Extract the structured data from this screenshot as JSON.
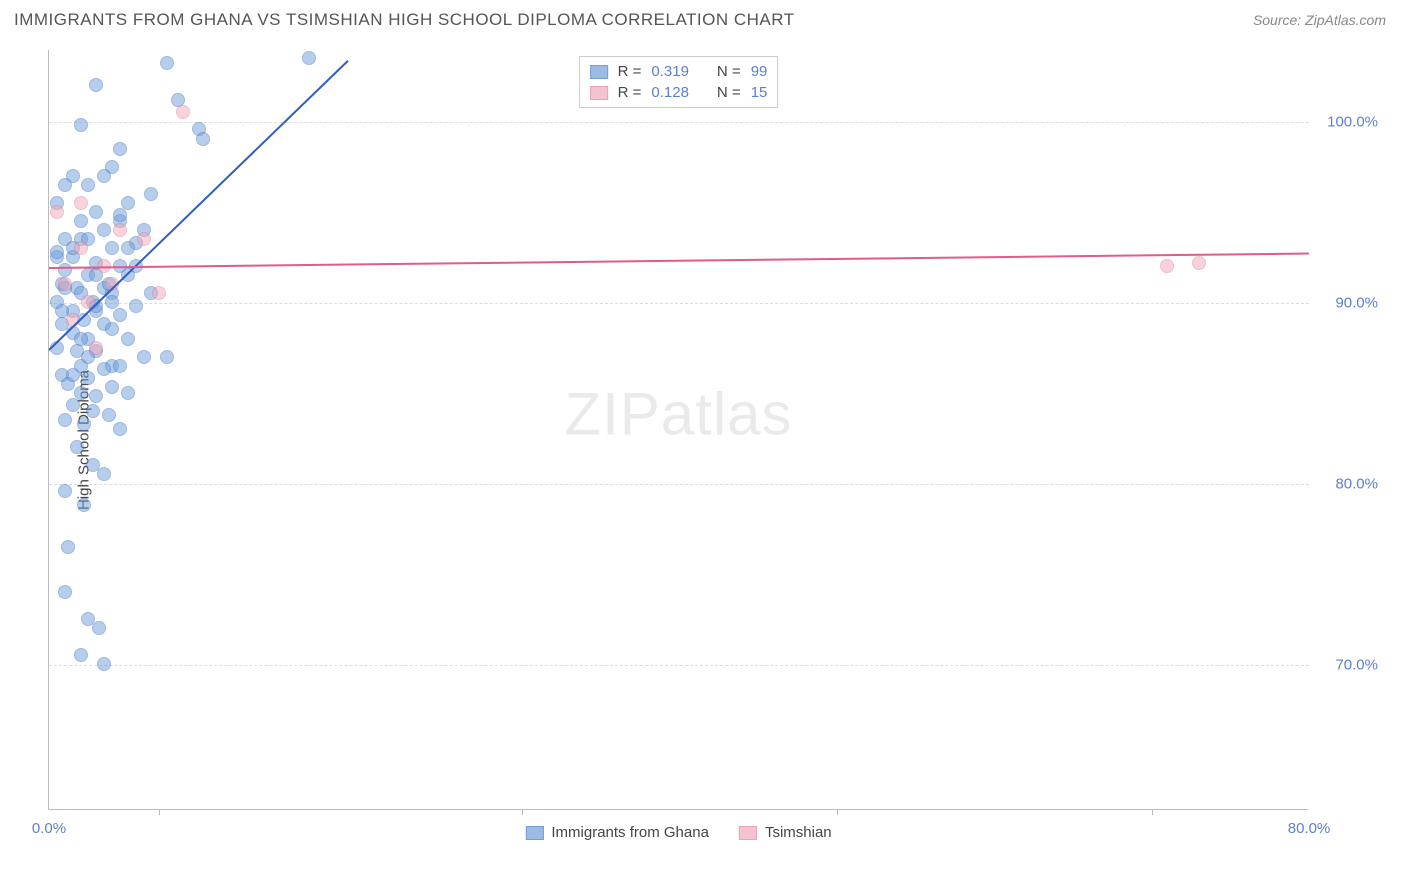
{
  "header": {
    "title": "IMMIGRANTS FROM GHANA VS TSIMSHIAN HIGH SCHOOL DIPLOMA CORRELATION CHART",
    "source_label": "Source:",
    "source_value": "ZipAtlas.com"
  },
  "chart": {
    "type": "scatter",
    "ylabel": "High School Diploma",
    "background_color": "#ffffff",
    "grid_color": "#dddddd",
    "axis_color": "#bbbbbb",
    "tick_label_color": "#5b7fd1",
    "ylabel_fontsize": 15,
    "tick_fontsize": 15,
    "ylim": [
      62,
      104
    ],
    "xlim": [
      0,
      80
    ],
    "yticks": [
      {
        "value": 70,
        "label": "70.0%"
      },
      {
        "value": 80,
        "label": "80.0%"
      },
      {
        "value": 90,
        "label": "90.0%"
      },
      {
        "value": 100,
        "label": "100.0%"
      }
    ],
    "xticks_marks": [
      7,
      30,
      50,
      70
    ],
    "xtick_labels": [
      {
        "value": 0,
        "label": "0.0%"
      },
      {
        "value": 80,
        "label": "80.0%"
      }
    ],
    "marker_radius": 7,
    "marker_opacity": 0.5,
    "series": [
      {
        "name": "Immigrants from Ghana",
        "fill_color": "#6f9fda",
        "stroke_color": "#3f73c3",
        "trend_color": "#2f5fc0",
        "trend_width": 2,
        "R": "0.319",
        "N": "99",
        "trendline": {
          "x1": 0,
          "y1": 87.5,
          "x2": 19,
          "y2": 103.5
        },
        "points": [
          [
            7.5,
            103.2
          ],
          [
            3.0,
            102.0
          ],
          [
            8.2,
            101.2
          ],
          [
            2.0,
            99.8
          ],
          [
            9.5,
            99.6
          ],
          [
            9.8,
            99.0
          ],
          [
            4.5,
            98.5
          ],
          [
            4.0,
            97.5
          ],
          [
            1.5,
            97.0
          ],
          [
            2.5,
            96.5
          ],
          [
            0.5,
            95.5
          ],
          [
            5.0,
            95.5
          ],
          [
            3.0,
            95.0
          ],
          [
            4.5,
            94.5
          ],
          [
            3.5,
            94.0
          ],
          [
            6.0,
            94.0
          ],
          [
            1.0,
            93.5
          ],
          [
            2.0,
            93.5
          ],
          [
            5.5,
            93.3
          ],
          [
            4.0,
            93.0
          ],
          [
            16.5,
            103.5
          ],
          [
            0.5,
            92.5
          ],
          [
            1.5,
            92.5
          ],
          [
            3.0,
            92.2
          ],
          [
            4.5,
            92.0
          ],
          [
            2.5,
            91.5
          ],
          [
            5.0,
            91.5
          ],
          [
            0.8,
            91.0
          ],
          [
            1.8,
            90.8
          ],
          [
            3.5,
            90.8
          ],
          [
            2.0,
            90.5
          ],
          [
            4.0,
            90.5
          ],
          [
            6.5,
            90.5
          ],
          [
            0.5,
            90.0
          ],
          [
            2.8,
            90.0
          ],
          [
            5.5,
            89.8
          ],
          [
            1.5,
            89.5
          ],
          [
            3.0,
            89.5
          ],
          [
            4.5,
            89.3
          ],
          [
            2.2,
            89.0
          ],
          [
            0.8,
            88.8
          ],
          [
            3.5,
            88.8
          ],
          [
            5.0,
            88.0
          ],
          [
            1.5,
            88.3
          ],
          [
            2.5,
            88.0
          ],
          [
            6.0,
            87.0
          ],
          [
            0.5,
            87.5
          ],
          [
            3.0,
            87.3
          ],
          [
            4.0,
            86.5
          ],
          [
            7.5,
            87.0
          ],
          [
            1.8,
            87.3
          ],
          [
            4.5,
            86.5
          ],
          [
            2.0,
            86.5
          ],
          [
            3.5,
            86.3
          ],
          [
            0.8,
            86.0
          ],
          [
            2.5,
            85.8
          ],
          [
            1.2,
            85.5
          ],
          [
            4.0,
            85.3
          ],
          [
            2.0,
            85.0
          ],
          [
            3.0,
            84.8
          ],
          [
            5.0,
            85.0
          ],
          [
            1.5,
            84.3
          ],
          [
            2.8,
            84.0
          ],
          [
            3.8,
            83.8
          ],
          [
            1.0,
            83.5
          ],
          [
            2.2,
            83.3
          ],
          [
            4.5,
            83.0
          ],
          [
            1.8,
            82.0
          ],
          [
            2.8,
            81.0
          ],
          [
            3.5,
            80.5
          ],
          [
            1.0,
            79.6
          ],
          [
            2.2,
            78.8
          ],
          [
            1.2,
            76.5
          ],
          [
            1.0,
            74.0
          ],
          [
            2.5,
            72.5
          ],
          [
            3.2,
            72.0
          ],
          [
            2.0,
            70.5
          ],
          [
            3.5,
            70.0
          ],
          [
            0.5,
            92.8
          ],
          [
            1.0,
            91.8
          ],
          [
            3.8,
            91.0
          ],
          [
            5.5,
            92.0
          ],
          [
            2.0,
            94.5
          ],
          [
            6.5,
            96.0
          ],
          [
            3.5,
            97.0
          ],
          [
            1.0,
            96.5
          ],
          [
            4.0,
            88.5
          ],
          [
            2.5,
            87.0
          ],
          [
            1.5,
            93.0
          ],
          [
            3.0,
            91.5
          ],
          [
            0.8,
            89.5
          ],
          [
            5.0,
            93.0
          ],
          [
            2.0,
            88.0
          ],
          [
            4.0,
            90.0
          ],
          [
            1.5,
            86.0
          ],
          [
            3.0,
            89.8
          ],
          [
            1.0,
            90.8
          ],
          [
            4.5,
            94.8
          ],
          [
            2.5,
            93.5
          ]
        ]
      },
      {
        "name": "Tsimshian",
        "fill_color": "#f2a9bb",
        "stroke_color": "#e67a9a",
        "trend_color": "#e35b87",
        "trend_width": 2,
        "R": "0.128",
        "N": "15",
        "trendline": {
          "x1": 0,
          "y1": 92.0,
          "x2": 80,
          "y2": 92.8
        },
        "points": [
          [
            0.5,
            95.0
          ],
          [
            2.0,
            93.0
          ],
          [
            3.5,
            92.0
          ],
          [
            1.0,
            91.0
          ],
          [
            4.5,
            94.0
          ],
          [
            2.5,
            90.0
          ],
          [
            8.5,
            100.5
          ],
          [
            6.0,
            93.5
          ],
          [
            1.5,
            89.0
          ],
          [
            3.0,
            87.5
          ],
          [
            7.0,
            90.5
          ],
          [
            71.0,
            92.0
          ],
          [
            73.0,
            92.2
          ],
          [
            4.0,
            91.0
          ],
          [
            2.0,
            95.5
          ]
        ]
      }
    ],
    "stats_box": {
      "r_label": "R =",
      "n_label": "N ="
    },
    "watermark": {
      "prefix": "ZIP",
      "suffix": "atlas"
    },
    "bottom_legend": [
      {
        "label": "Immigrants from Ghana",
        "fill": "#6f9fda",
        "stroke": "#3f73c3"
      },
      {
        "label": "Tsimshian",
        "fill": "#f2a9bb",
        "stroke": "#e67a9a"
      }
    ]
  }
}
